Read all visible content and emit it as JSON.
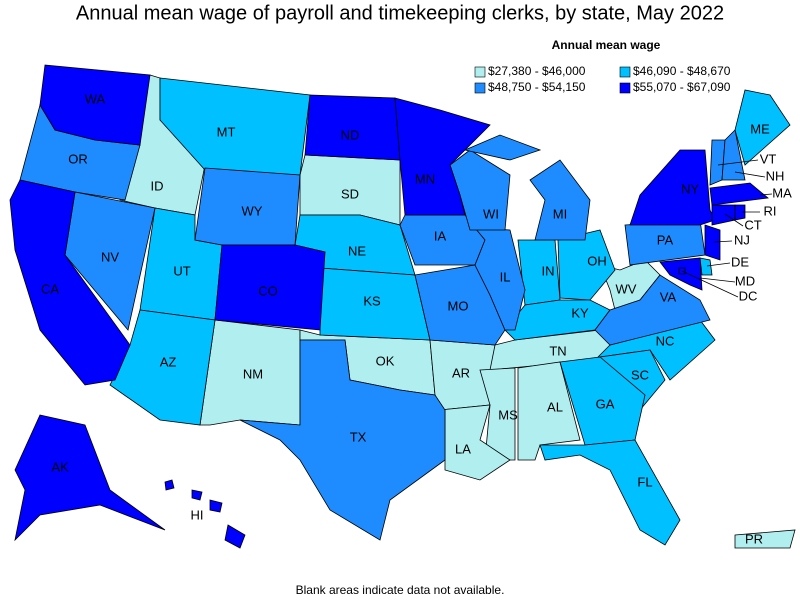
{
  "title": "Annual mean wage of payroll and timekeeping clerks, by state, May 2022",
  "legend": {
    "title": "Annual mean wage",
    "items": [
      {
        "label": "$27,380 - $46,000",
        "color": "#b0eef0",
        "states": [
          "ID",
          "SD",
          "NM",
          "OK",
          "AR",
          "TN",
          "MS",
          "AL",
          "LA",
          "WV",
          "PR"
        ]
      },
      {
        "label": "$46,090 - $48,670",
        "color": "#00c0ff",
        "states": [
          "MT",
          "UT",
          "AZ",
          "NE",
          "KS",
          "IN",
          "OH",
          "KY",
          "NC",
          "SC",
          "GA",
          "FL",
          "ME",
          "DE"
        ]
      },
      {
        "label": "$48,750 - $54,150",
        "color": "#1e8cff",
        "states": [
          "OR",
          "NV",
          "WY",
          "IA",
          "MO",
          "IL",
          "WI",
          "MI",
          "TX",
          "PA",
          "VA",
          "VT",
          "NH"
        ]
      },
      {
        "label": "$55,070 - $67,090",
        "color": "#0000ff",
        "states": [
          "WA",
          "CA",
          "CO",
          "ND",
          "MN",
          "NY",
          "MA",
          "CT",
          "RI",
          "NJ",
          "MD",
          "DC",
          "AK",
          "HI"
        ]
      }
    ]
  },
  "footnote": "Blank areas indicate data not available."
}
